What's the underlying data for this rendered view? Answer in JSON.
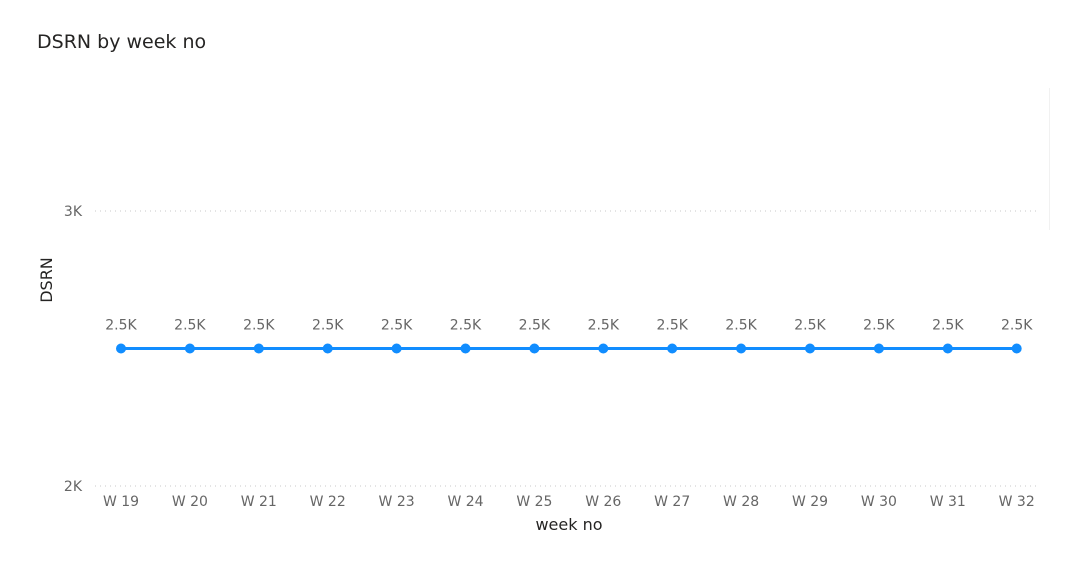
{
  "visual": {
    "title": "DSRN by week no"
  },
  "chart_data": {
    "type": "line",
    "title": "DSRN by week no",
    "xlabel": "week no",
    "ylabel": "DSRN",
    "categories": [
      "W 19",
      "W 20",
      "W 21",
      "W 22",
      "W 23",
      "W 24",
      "W 25",
      "W 26",
      "W 27",
      "W 28",
      "W 29",
      "W 30",
      "W 31",
      "W 32"
    ],
    "series": [
      {
        "values": [
          2500,
          2500,
          2500,
          2500,
          2500,
          2500,
          2500,
          2500,
          2500,
          2500,
          2500,
          2500,
          2500,
          2500
        ],
        "data_labels": [
          "2.5K",
          "2.5K",
          "2.5K",
          "2.5K",
          "2.5K",
          "2.5K",
          "2.5K",
          "2.5K",
          "2.5K",
          "2.5K",
          "2.5K",
          "2.5K",
          "2.5K",
          "2.5K"
        ],
        "color": "#118DFF"
      }
    ],
    "ylim": [
      2000,
      3000
    ],
    "yticks": [
      2000,
      3000
    ],
    "ytick_labels": [
      "2K",
      "3K"
    ],
    "grid": true,
    "legend": "none"
  }
}
